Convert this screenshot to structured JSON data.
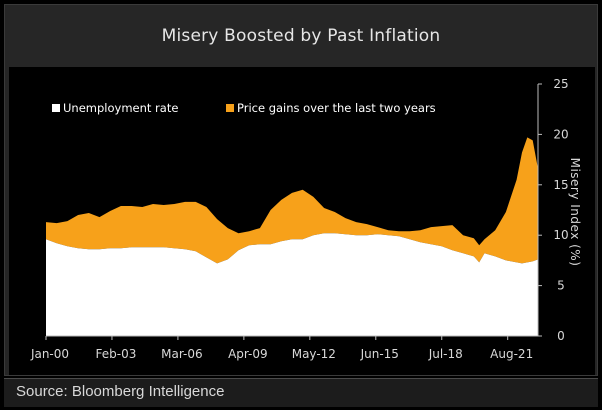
{
  "header": {
    "title": "Misery Boosted by Past Inflation"
  },
  "footer": {
    "source": "Source: Bloomberg Intelligence"
  },
  "colors": {
    "unemployment": "#ffffff",
    "price_gains": "#f7a11a",
    "plot_bg": "#000000",
    "frame_bg": "#262626"
  },
  "chart_data": {
    "type": "area",
    "stacked": true,
    "title": "Misery Boosted by Past Inflation",
    "xlabel": "",
    "ylabel": "Misery Index (%)",
    "ylim": [
      0,
      25
    ],
    "yticks": [
      0,
      5,
      10,
      15,
      20,
      25
    ],
    "y_axis_position": "right",
    "legend_position": "top-left",
    "x_tick_labels": [
      "Jan-00",
      "Feb-03",
      "Mar-06",
      "Apr-09",
      "May-12",
      "Jun-15",
      "Jul-18",
      "Aug-21"
    ],
    "x_tick_positions": [
      "2000-01",
      "2003-02",
      "2006-03",
      "2009-04",
      "2012-05",
      "2015-06",
      "2018-07",
      "2021-08"
    ],
    "x": [
      "2000-01",
      "2000-07",
      "2001-01",
      "2001-07",
      "2002-01",
      "2002-07",
      "2003-01",
      "2003-07",
      "2004-01",
      "2004-07",
      "2005-01",
      "2005-07",
      "2006-01",
      "2006-07",
      "2007-01",
      "2007-07",
      "2008-01",
      "2008-07",
      "2009-01",
      "2009-07",
      "2010-01",
      "2010-07",
      "2011-01",
      "2011-07",
      "2012-01",
      "2012-07",
      "2013-01",
      "2013-07",
      "2014-01",
      "2014-07",
      "2015-01",
      "2015-07",
      "2016-01",
      "2016-07",
      "2017-01",
      "2017-07",
      "2018-01",
      "2018-07",
      "2019-01",
      "2019-07",
      "2020-01",
      "2020-04",
      "2020-07",
      "2021-01",
      "2021-07",
      "2022-01",
      "2022-04",
      "2022-07",
      "2022-10",
      "2023-01"
    ],
    "series": [
      {
        "name": "Unemployment rate",
        "values": [
          9.6,
          9.2,
          8.9,
          8.7,
          8.6,
          8.6,
          8.7,
          8.7,
          8.8,
          8.8,
          8.8,
          8.8,
          8.7,
          8.6,
          8.4,
          7.8,
          7.2,
          7.6,
          8.5,
          9.0,
          9.1,
          9.1,
          9.4,
          9.6,
          9.6,
          10.0,
          10.2,
          10.2,
          10.1,
          10.0,
          10.0,
          10.1,
          10.0,
          9.9,
          9.6,
          9.3,
          9.1,
          8.9,
          8.5,
          8.2,
          7.9,
          7.3,
          8.2,
          7.9,
          7.5,
          7.3,
          7.2,
          7.3,
          7.4,
          7.6
        ]
      },
      {
        "name": "Price gains over the last two years",
        "values": [
          1.7,
          2.0,
          2.5,
          3.3,
          3.6,
          3.2,
          3.7,
          4.2,
          4.1,
          4.0,
          4.3,
          4.2,
          4.4,
          4.7,
          4.9,
          5.0,
          4.4,
          3.1,
          1.7,
          1.4,
          1.6,
          3.4,
          4.1,
          4.6,
          4.9,
          3.8,
          2.5,
          2.1,
          1.6,
          1.3,
          1.1,
          0.7,
          0.5,
          0.5,
          0.8,
          1.2,
          1.7,
          2.0,
          2.5,
          1.8,
          1.8,
          1.7,
          1.4,
          2.6,
          4.8,
          8.2,
          11.0,
          12.4,
          12.0,
          9.0
        ]
      }
    ]
  }
}
